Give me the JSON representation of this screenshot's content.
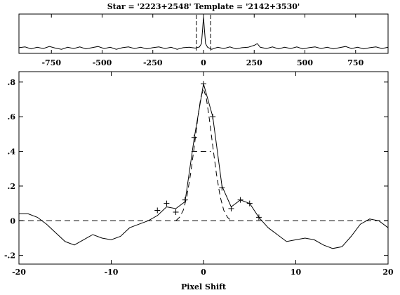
{
  "title": "Star = '2223+2548'  Template = '2142+3530'",
  "chart_data": [
    {
      "name": "full-correlation",
      "type": "line",
      "title": "",
      "xlabel": "",
      "ylabel": "",
      "xlim": [
        -910,
        910
      ],
      "ylim": [
        -0.12,
        0.85
      ],
      "xticks": [
        -750,
        -500,
        -250,
        0,
        250,
        500,
        750
      ],
      "xticklabels": [
        "-750",
        "-500",
        "-250",
        "0",
        "250",
        "500",
        "750"
      ],
      "window_markers": [
        -35,
        35
      ],
      "series": [
        {
          "line": "solid",
          "points": [
            [
              -910,
              0.02
            ],
            [
              -880,
              0.04
            ],
            [
              -850,
              -0.01
            ],
            [
              -820,
              0.03
            ],
            [
              -790,
              0.0
            ],
            [
              -760,
              0.05
            ],
            [
              -730,
              0.01
            ],
            [
              -700,
              -0.02
            ],
            [
              -670,
              0.03
            ],
            [
              -640,
              0.0
            ],
            [
              -610,
              0.04
            ],
            [
              -580,
              -0.01
            ],
            [
              -550,
              0.02
            ],
            [
              -520,
              0.05
            ],
            [
              -490,
              0.0
            ],
            [
              -460,
              0.03
            ],
            [
              -430,
              -0.02
            ],
            [
              -400,
              0.02
            ],
            [
              -370,
              0.04
            ],
            [
              -340,
              0.0
            ],
            [
              -310,
              0.03
            ],
            [
              -280,
              -0.01
            ],
            [
              -250,
              0.02
            ],
            [
              -220,
              0.04
            ],
            [
              -190,
              0.0
            ],
            [
              -160,
              0.03
            ],
            [
              -130,
              -0.02
            ],
            [
              -100,
              0.02
            ],
            [
              -70,
              0.03
            ],
            [
              -40,
              0.01
            ],
            [
              -20,
              0.04
            ],
            [
              -10,
              0.12
            ],
            [
              -5,
              0.45
            ],
            [
              0,
              0.78
            ],
            [
              5,
              0.45
            ],
            [
              10,
              0.12
            ],
            [
              20,
              0.03
            ],
            [
              40,
              -0.02
            ],
            [
              70,
              0.03
            ],
            [
              100,
              0.0
            ],
            [
              130,
              0.04
            ],
            [
              160,
              -0.01
            ],
            [
              190,
              0.02
            ],
            [
              220,
              0.03
            ],
            [
              250,
              0.08
            ],
            [
              265,
              0.12
            ],
            [
              280,
              0.03
            ],
            [
              310,
              0.0
            ],
            [
              340,
              0.04
            ],
            [
              370,
              -0.01
            ],
            [
              400,
              0.03
            ],
            [
              430,
              0.0
            ],
            [
              460,
              0.04
            ],
            [
              490,
              -0.01
            ],
            [
              520,
              0.02
            ],
            [
              550,
              0.04
            ],
            [
              580,
              0.0
            ],
            [
              610,
              0.03
            ],
            [
              640,
              -0.01
            ],
            [
              670,
              0.02
            ],
            [
              700,
              0.05
            ],
            [
              730,
              0.0
            ],
            [
              760,
              0.03
            ],
            [
              790,
              -0.01
            ],
            [
              820,
              0.02
            ],
            [
              850,
              0.04
            ],
            [
              880,
              0.0
            ],
            [
              910,
              0.03
            ]
          ]
        }
      ]
    },
    {
      "name": "zoomed-peak",
      "type": "line",
      "title": "",
      "xlabel": "Pixel Shift",
      "ylabel": "",
      "xlim": [
        -20,
        20
      ],
      "ylim": [
        -0.25,
        0.86
      ],
      "xticks": [
        -20,
        -10,
        0,
        10,
        20
      ],
      "xticklabels": [
        "-20",
        "-10",
        "0",
        "10",
        "20"
      ],
      "yticks": [
        -0.2,
        0,
        0.2,
        0.4,
        0.6,
        0.8
      ],
      "yticklabels": [
        "-.2",
        "0",
        ".2",
        ".4",
        ".6",
        ".8"
      ],
      "series": [
        {
          "line": "solid",
          "points": [
            [
              -20,
              0.04
            ],
            [
              -19,
              0.04
            ],
            [
              -18,
              0.02
            ],
            [
              -17,
              -0.02
            ],
            [
              -16,
              -0.07
            ],
            [
              -15,
              -0.12
            ],
            [
              -14,
              -0.14
            ],
            [
              -13,
              -0.11
            ],
            [
              -12,
              -0.08
            ],
            [
              -11,
              -0.1
            ],
            [
              -10,
              -0.11
            ],
            [
              -9,
              -0.09
            ],
            [
              -8,
              -0.04
            ],
            [
              -7,
              -0.02
            ],
            [
              -6,
              0.0
            ],
            [
              -5,
              0.03
            ],
            [
              -4,
              0.08
            ],
            [
              -3,
              0.07
            ],
            [
              -2,
              0.11
            ],
            [
              -1,
              0.48
            ],
            [
              0,
              0.79
            ],
            [
              1,
              0.6
            ],
            [
              2,
              0.2
            ],
            [
              3,
              0.08
            ],
            [
              4,
              0.12
            ],
            [
              5,
              0.1
            ],
            [
              6,
              0.02
            ],
            [
              7,
              -0.04
            ],
            [
              8,
              -0.08
            ],
            [
              9,
              -0.12
            ],
            [
              10,
              -0.11
            ],
            [
              11,
              -0.1
            ],
            [
              12,
              -0.11
            ],
            [
              13,
              -0.14
            ],
            [
              14,
              -0.16
            ],
            [
              15,
              -0.15
            ],
            [
              16,
              -0.09
            ],
            [
              17,
              -0.02
            ],
            [
              18,
              0.01
            ],
            [
              19,
              0.0
            ],
            [
              20,
              -0.04
            ]
          ]
        },
        {
          "line": "markers",
          "points": [
            [
              -5,
              0.06
            ],
            [
              -4,
              0.1
            ],
            [
              -3,
              0.05
            ],
            [
              -2,
              0.12
            ],
            [
              -1,
              0.48
            ],
            [
              0,
              0.79
            ],
            [
              1,
              0.6
            ],
            [
              2,
              0.19
            ],
            [
              3,
              0.07
            ],
            [
              4,
              0.12
            ],
            [
              5,
              0.1
            ],
            [
              6,
              0.02
            ]
          ]
        },
        {
          "line": "dashed",
          "points": [
            [
              -3,
              0.0
            ],
            [
              -2.6,
              0.02
            ],
            [
              -2.2,
              0.06
            ],
            [
              -1.8,
              0.14
            ],
            [
              -1.4,
              0.27
            ],
            [
              -1,
              0.43
            ],
            [
              -0.6,
              0.6
            ],
            [
              -0.3,
              0.71
            ],
            [
              0,
              0.76
            ],
            [
              0.3,
              0.71
            ],
            [
              0.6,
              0.6
            ],
            [
              1,
              0.43
            ],
            [
              1.4,
              0.27
            ],
            [
              1.8,
              0.14
            ],
            [
              2.2,
              0.06
            ],
            [
              2.6,
              0.02
            ],
            [
              3,
              0.0
            ]
          ]
        },
        {
          "line": "dashed",
          "points": [
            [
              -20,
              0.0
            ],
            [
              20,
              0.0
            ]
          ]
        },
        {
          "line": "dashed",
          "points": [
            [
              -1.3,
              0.4
            ],
            [
              0.8,
              0.4
            ]
          ]
        }
      ]
    }
  ]
}
